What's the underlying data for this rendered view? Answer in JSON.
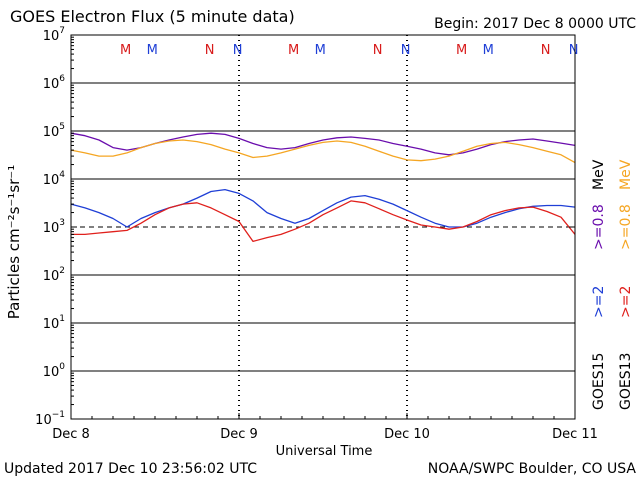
{
  "header": {
    "title": "GOES Electron Flux (5 minute data)",
    "begin": "Begin: 2017 Dec 8 0000 UTC"
  },
  "footer": {
    "updated": "Updated 2017 Dec 10 23:56:02 UTC",
    "credit": "NOAA/SWPC Boulder, CO USA"
  },
  "colors": {
    "frame": "#000000",
    "threshold": "#000000",
    "goes15_low": "#6a0dad",
    "goes13_low": "#f5a623",
    "goes15_high": "#1f3fd6",
    "goes13_high": "#e0201c",
    "noon_m": "#d81b1b",
    "noon_n_red": "#d81b1b",
    "noon_n_blue": "#1f3fd6"
  },
  "chart_data": {
    "type": "line",
    "title": "GOES Electron Flux (5 minute data)",
    "xlabel": "Universal Time",
    "ylabel": "Particles cm⁻²s⁻¹sr⁻¹",
    "yscale": "log",
    "ylim": [
      0.1,
      10000000
    ],
    "xlim": [
      0,
      72
    ],
    "x_unit": "hours since 2017 Dec 8 0000 UTC",
    "x_ticks": [
      {
        "x": 0,
        "label": "Dec 8"
      },
      {
        "x": 24,
        "label": "Dec 9"
      },
      {
        "x": 48,
        "label": "Dec 10"
      },
      {
        "x": 72,
        "label": "Dec 11"
      }
    ],
    "y_ticks": [
      {
        "exp": 7,
        "label": "10",
        "sup": "7"
      },
      {
        "exp": 6,
        "label": "10",
        "sup": "6"
      },
      {
        "exp": 5,
        "label": "10",
        "sup": "5"
      },
      {
        "exp": 4,
        "label": "10",
        "sup": "4"
      },
      {
        "exp": 3,
        "label": "10",
        "sup": "3"
      },
      {
        "exp": 2,
        "label": "10",
        "sup": "2"
      },
      {
        "exp": 1,
        "label": "10",
        "sup": "1"
      },
      {
        "exp": 0,
        "label": "10",
        "sup": "0"
      },
      {
        "exp": -1,
        "label": "10",
        "sup": "−1"
      }
    ],
    "gridlines_y": [
      6,
      5,
      4,
      2,
      1,
      0
    ],
    "threshold": 1000,
    "noon_markers": [
      {
        "x": 7.8,
        "label": "M",
        "color": "#d81b1b"
      },
      {
        "x": 11.6,
        "label": "M",
        "color": "#1f3fd6"
      },
      {
        "x": 19.8,
        "label": "N",
        "color": "#d81b1b"
      },
      {
        "x": 23.8,
        "label": "N",
        "color": "#1f3fd6"
      },
      {
        "x": 31.8,
        "label": "M",
        "color": "#d81b1b"
      },
      {
        "x": 35.6,
        "label": "M",
        "color": "#1f3fd6"
      },
      {
        "x": 43.8,
        "label": "N",
        "color": "#d81b1b"
      },
      {
        "x": 47.8,
        "label": "N",
        "color": "#1f3fd6"
      },
      {
        "x": 55.8,
        "label": "M",
        "color": "#d81b1b"
      },
      {
        "x": 59.6,
        "label": "M",
        "color": "#1f3fd6"
      },
      {
        "x": 67.8,
        "label": "N",
        "color": "#d81b1b"
      },
      {
        "x": 71.8,
        "label": "N",
        "color": "#1f3fd6"
      }
    ],
    "legend": {
      "satellites": [
        {
          "label": "GOES15",
          "color": "#000000"
        },
        {
          "label": "GOES13",
          "color": "#000000"
        }
      ],
      "high_energy": [
        {
          "label": ">=2",
          "color": "#1f3fd6"
        },
        {
          "label": ">=2",
          "color": "#e0201c"
        }
      ],
      "low_energy": [
        {
          "label": ">=0.8",
          "color": "#6a0dad"
        },
        {
          "label": ">=0.8",
          "color": "#f5a623"
        }
      ],
      "unit": "MeV"
    },
    "series": [
      {
        "name": "GOES15 >=0.8 MeV",
        "color": "#6a0dad",
        "x": [
          0,
          2,
          4,
          6,
          8,
          10,
          12,
          14,
          16,
          18,
          20,
          22,
          24,
          26,
          28,
          30,
          32,
          34,
          36,
          38,
          40,
          42,
          44,
          46,
          48,
          50,
          52,
          54,
          56,
          58,
          60,
          62,
          64,
          66,
          68,
          70,
          72
        ],
        "y": [
          90000,
          80000,
          65000,
          45000,
          40000,
          45000,
          55000,
          65000,
          75000,
          85000,
          90000,
          85000,
          70000,
          55000,
          45000,
          42000,
          45000,
          55000,
          65000,
          72000,
          75000,
          70000,
          65000,
          55000,
          48000,
          42000,
          35000,
          32000,
          35000,
          42000,
          52000,
          60000,
          65000,
          68000,
          62000,
          56000,
          50000
        ]
      },
      {
        "name": "GOES13 >=0.8 MeV",
        "color": "#f5a623",
        "x": [
          0,
          2,
          4,
          6,
          8,
          10,
          12,
          14,
          16,
          18,
          20,
          22,
          24,
          26,
          28,
          30,
          32,
          34,
          36,
          38,
          40,
          42,
          44,
          46,
          48,
          50,
          52,
          54,
          56,
          58,
          60,
          62,
          64,
          66,
          68,
          70,
          72
        ],
        "y": [
          40000,
          35000,
          30000,
          30000,
          35000,
          45000,
          55000,
          62000,
          65000,
          60000,
          52000,
          42000,
          35000,
          28000,
          30000,
          35000,
          42000,
          50000,
          58000,
          62000,
          58000,
          48000,
          38000,
          30000,
          25000,
          24000,
          26000,
          30000,
          38000,
          48000,
          55000,
          58000,
          52000,
          45000,
          38000,
          32000,
          22000
        ]
      },
      {
        "name": "GOES15 >=2 MeV",
        "color": "#1f3fd6",
        "x": [
          0,
          2,
          4,
          6,
          8,
          10,
          12,
          14,
          16,
          18,
          20,
          22,
          24,
          26,
          28,
          30,
          32,
          34,
          36,
          38,
          40,
          42,
          44,
          46,
          48,
          50,
          52,
          54,
          56,
          58,
          60,
          62,
          64,
          66,
          68,
          70,
          72
        ],
        "y": [
          3000,
          2500,
          2000,
          1500,
          1000,
          1500,
          2000,
          2500,
          3000,
          4000,
          5500,
          6000,
          5000,
          3500,
          2000,
          1500,
          1200,
          1500,
          2200,
          3200,
          4200,
          4500,
          3800,
          3000,
          2200,
          1600,
          1200,
          1000,
          1000,
          1200,
          1600,
          2000,
          2400,
          2700,
          2800,
          2800,
          2600
        ]
      },
      {
        "name": "GOES13 >=2 MeV",
        "color": "#e0201c",
        "x": [
          0,
          2,
          4,
          6,
          8,
          10,
          12,
          14,
          16,
          18,
          20,
          22,
          24,
          26,
          28,
          30,
          32,
          34,
          36,
          38,
          40,
          42,
          44,
          46,
          48,
          50,
          52,
          54,
          56,
          58,
          60,
          62,
          64,
          66,
          68,
          70,
          72
        ],
        "y": [
          700,
          700,
          750,
          800,
          850,
          1200,
          1800,
          2500,
          3000,
          3200,
          2500,
          1800,
          1300,
          500,
          600,
          700,
          900,
          1200,
          1800,
          2500,
          3500,
          3200,
          2400,
          1800,
          1400,
          1100,
          1000,
          900,
          1000,
          1300,
          1800,
          2200,
          2500,
          2600,
          2100,
          1600,
          700
        ]
      }
    ]
  }
}
